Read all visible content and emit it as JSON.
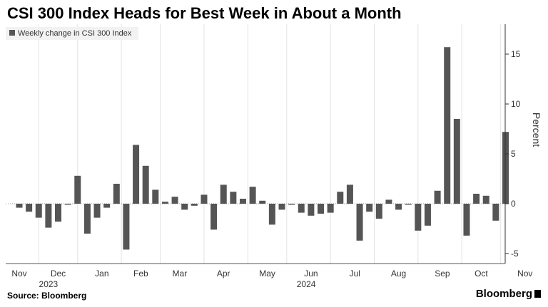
{
  "chart_data": {
    "type": "bar",
    "title": "CSI 300 Index Heads for Best Week in About a Month",
    "legend": [
      {
        "name": "Weekly change in CSI 300 Index",
        "color": "#555555"
      }
    ],
    "legend_placement": "top-left",
    "ylabel": "Percent",
    "y_axis_side": "right",
    "ylim": [
      -6,
      18
    ],
    "yticks": [
      -5,
      0,
      5,
      10,
      15
    ],
    "grid": "vertical",
    "bar_color": "#555555",
    "series": [
      {
        "name": "Weekly change in CSI 300 Index",
        "values": [
          -0.4,
          -0.8,
          -1.4,
          -2.4,
          -1.8,
          -0.1,
          2.8,
          -3.0,
          -1.4,
          -0.4,
          2.0,
          -4.6,
          5.9,
          3.8,
          1.4,
          0.2,
          0.7,
          -0.6,
          -0.2,
          0.9,
          -2.6,
          1.9,
          1.2,
          0.5,
          1.7,
          0.3,
          -2.1,
          -0.6,
          -0.1,
          -0.9,
          -1.2,
          -1.0,
          -0.9,
          1.2,
          1.9,
          -3.7,
          -0.8,
          -1.5,
          0.4,
          -0.6,
          -0.1,
          -2.7,
          -2.2,
          1.3,
          15.7,
          8.5,
          -3.2,
          1.0,
          0.8,
          -1.7,
          7.2
        ]
      }
    ],
    "x_month_labels": [
      {
        "label": "Nov",
        "week": 0
      },
      {
        "label": "Dec",
        "week": 4
      },
      {
        "label": "Jan",
        "week": 8.5
      },
      {
        "label": "Feb",
        "week": 12.5
      },
      {
        "label": "Mar",
        "week": 16.5
      },
      {
        "label": "Apr",
        "week": 21
      },
      {
        "label": "May",
        "week": 25.5
      },
      {
        "label": "Jun",
        "week": 30
      },
      {
        "label": "Jul",
        "week": 34.5
      },
      {
        "label": "Aug",
        "week": 39
      },
      {
        "label": "Sep",
        "week": 43.5
      },
      {
        "label": "Oct",
        "week": 47.5
      },
      {
        "label": "Nov",
        "week": 52
      }
    ],
    "x_year_labels": [
      {
        "label": "2023",
        "week": 3
      },
      {
        "label": "2024",
        "week": 29.5
      }
    ],
    "x_gridlines_week": [
      2,
      6,
      10.5,
      14.5,
      19,
      23.5,
      27.5,
      32,
      36.5,
      41,
      45.5,
      49.5
    ]
  },
  "footer": {
    "source": "Source: Bloomberg",
    "brand": "Bloomberg"
  }
}
